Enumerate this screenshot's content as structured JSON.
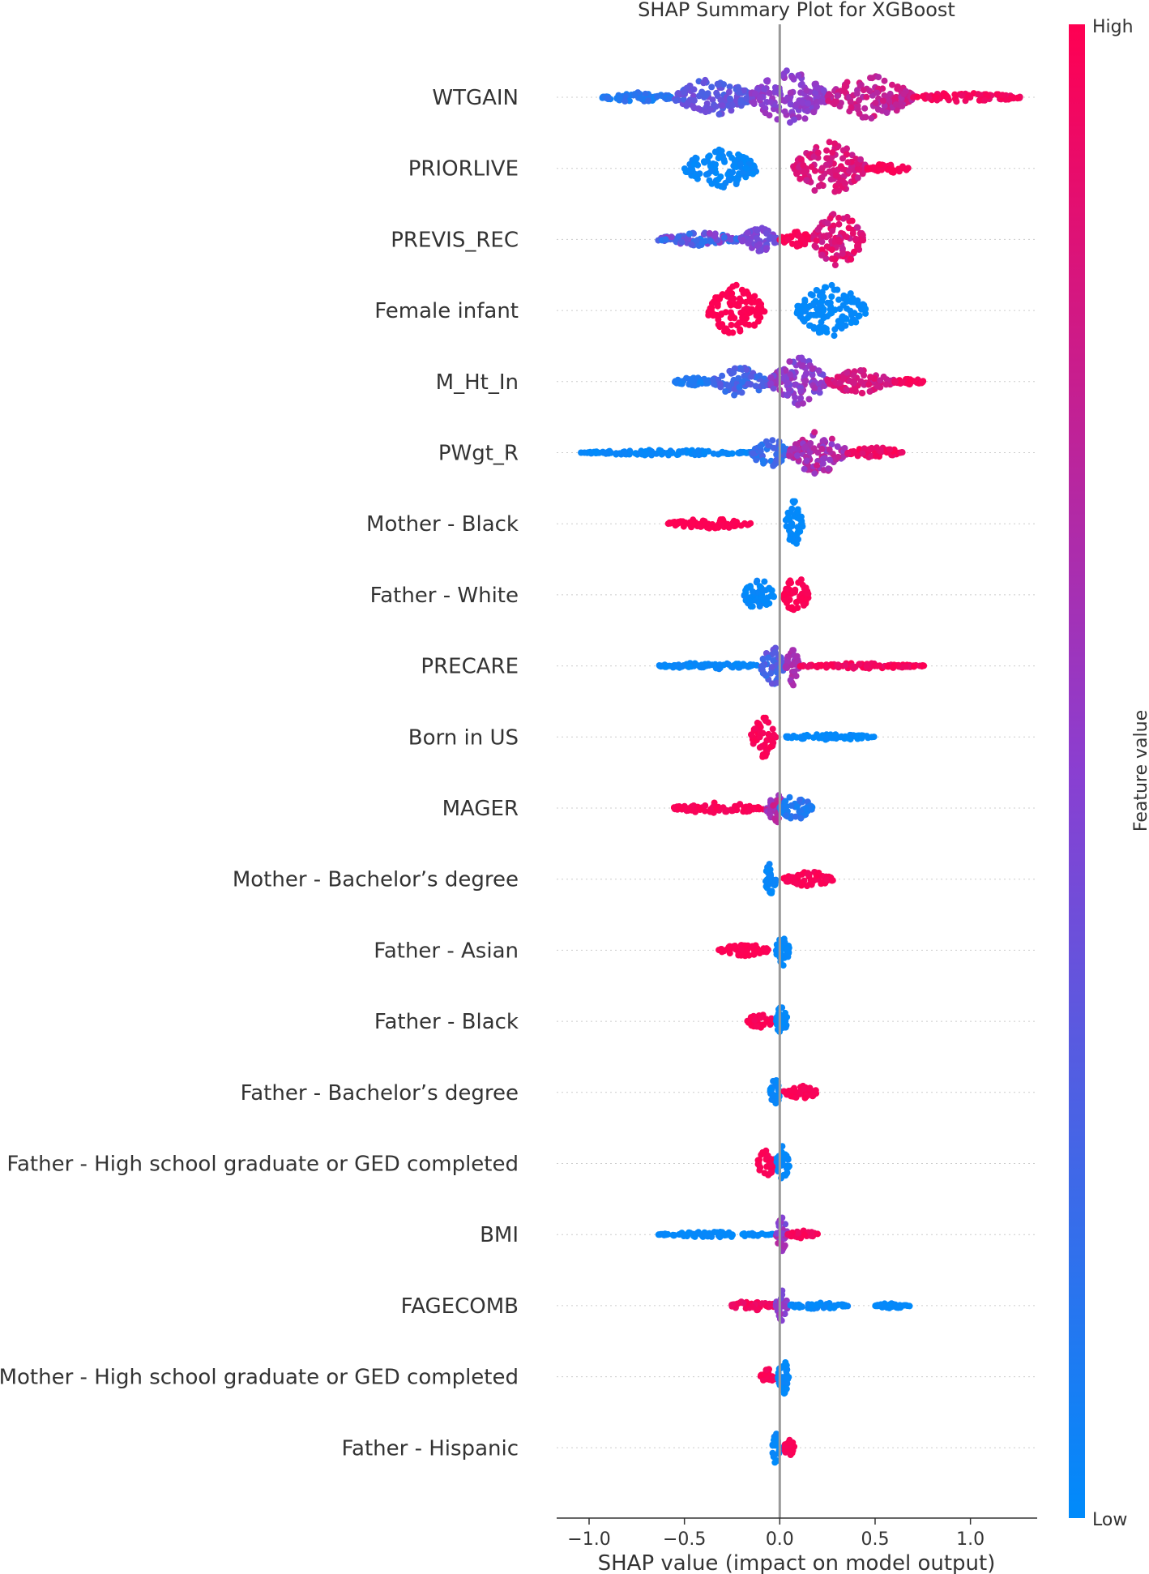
{
  "chart_data": {
    "type": "scatter",
    "subtype": "shap-beeswarm",
    "title": "SHAP Summary Plot for XGBoost",
    "xlabel": "SHAP value (impact on model output)",
    "xlim": [
      -1.17,
      1.35
    ],
    "xticks": [
      -1.0,
      -0.5,
      0.0,
      0.5,
      1.0
    ],
    "xtick_labels": [
      "−1.0",
      "−0.5",
      "0.0",
      "0.5",
      "1.0"
    ],
    "colorbar": {
      "label": "Feature value",
      "high": "High",
      "low": "Low",
      "low_color": "#008bfb",
      "high_color": "#ff0052"
    },
    "reference_line": 0.0,
    "features": [
      {
        "name": "WTGAIN",
        "clusters": [
          {
            "min": -0.93,
            "max": -0.55,
            "width": 0.18,
            "c0": 0.05,
            "c1": 0.2
          },
          {
            "min": -0.55,
            "max": -0.15,
            "width": 0.7,
            "c0": 0.25,
            "c1": 0.45
          },
          {
            "min": -0.15,
            "max": 0.25,
            "width": 1.0,
            "c0": 0.45,
            "c1": 0.6
          },
          {
            "min": 0.25,
            "max": 0.7,
            "width": 0.8,
            "c0": 0.65,
            "c1": 0.85
          },
          {
            "min": 0.7,
            "max": 1.27,
            "width": 0.18,
            "c0": 0.9,
            "c1": 1.0
          }
        ]
      },
      {
        "name": "PRIORLIVE",
        "clusters": [
          {
            "min": -0.5,
            "max": -0.12,
            "width": 0.75,
            "c0": 0.0,
            "c1": 0.05
          },
          {
            "min": 0.07,
            "max": 0.45,
            "width": 1.0,
            "c0": 0.75,
            "c1": 0.9
          },
          {
            "min": 0.45,
            "max": 0.68,
            "width": 0.18,
            "c0": 0.95,
            "c1": 1.0
          }
        ]
      },
      {
        "name": "PREVIS_REC",
        "clusters": [
          {
            "min": -0.64,
            "max": -0.2,
            "width": 0.25,
            "c0": 0.1,
            "c1": 0.55
          },
          {
            "min": -0.2,
            "max": 0.0,
            "width": 0.45,
            "c0": 0.35,
            "c1": 0.5
          },
          {
            "min": 0.0,
            "max": 0.17,
            "width": 0.3,
            "c0": 0.95,
            "c1": 1.0
          },
          {
            "min": 0.17,
            "max": 0.44,
            "width": 1.0,
            "c0": 0.75,
            "c1": 0.95
          }
        ]
      },
      {
        "name": "Female infant",
        "clusters": [
          {
            "min": -0.38,
            "max": -0.08,
            "width": 0.95,
            "c0": 0.98,
            "c1": 1.0
          },
          {
            "min": 0.09,
            "max": 0.45,
            "width": 0.95,
            "c0": 0.0,
            "c1": 0.03
          }
        ]
      },
      {
        "name": "M_Ht_In",
        "clusters": [
          {
            "min": -0.56,
            "max": -0.35,
            "width": 0.15,
            "c0": 0.05,
            "c1": 0.15
          },
          {
            "min": -0.35,
            "max": -0.05,
            "width": 0.55,
            "c0": 0.15,
            "c1": 0.35
          },
          {
            "min": -0.05,
            "max": 0.25,
            "width": 0.9,
            "c0": 0.4,
            "c1": 0.65
          },
          {
            "min": 0.25,
            "max": 0.6,
            "width": 0.45,
            "c0": 0.75,
            "c1": 0.9
          },
          {
            "min": 0.6,
            "max": 0.76,
            "width": 0.12,
            "c0": 0.9,
            "c1": 1.0
          }
        ]
      },
      {
        "name": "PWgt_R",
        "clusters": [
          {
            "min": -1.05,
            "max": -0.15,
            "width": 0.1,
            "c0": 0.0,
            "c1": 0.05
          },
          {
            "min": -0.15,
            "max": 0.05,
            "width": 0.55,
            "c0": 0.1,
            "c1": 0.3
          },
          {
            "min": 0.05,
            "max": 0.35,
            "width": 0.8,
            "c0": 0.5,
            "c1": 0.8
          },
          {
            "min": 0.35,
            "max": 0.65,
            "width": 0.2,
            "c0": 0.85,
            "c1": 1.0
          }
        ]
      },
      {
        "name": "Mother - Black",
        "clusters": [
          {
            "min": -0.59,
            "max": -0.14,
            "width": 0.18,
            "c0": 0.98,
            "c1": 1.0
          },
          {
            "min": 0.03,
            "max": 0.12,
            "width": 0.85,
            "c0": 0.0,
            "c1": 0.03
          }
        ]
      },
      {
        "name": "Father - White",
        "clusters": [
          {
            "min": -0.19,
            "max": -0.03,
            "width": 0.6,
            "c0": 0.0,
            "c1": 0.05
          },
          {
            "min": 0.02,
            "max": 0.15,
            "width": 0.75,
            "c0": 0.97,
            "c1": 1.0
          }
        ]
      },
      {
        "name": "PRECARE",
        "clusters": [
          {
            "min": -0.64,
            "max": -0.1,
            "width": 0.12,
            "c0": 0.0,
            "c1": 0.05
          },
          {
            "min": -0.1,
            "max": 0.03,
            "width": 0.7,
            "c0": 0.15,
            "c1": 0.4
          },
          {
            "min": 0.03,
            "max": 0.1,
            "width": 0.75,
            "c0": 0.55,
            "c1": 0.7
          },
          {
            "min": 0.1,
            "max": 0.76,
            "width": 0.1,
            "c0": 0.9,
            "c1": 1.0
          }
        ]
      },
      {
        "name": "Born in US",
        "clusters": [
          {
            "min": -0.15,
            "max": -0.02,
            "width": 0.75,
            "c0": 0.95,
            "c1": 1.0
          },
          {
            "min": 0.02,
            "max": 0.5,
            "width": 0.12,
            "c0": 0.0,
            "c1": 0.03
          }
        ]
      },
      {
        "name": "MAGER",
        "clusters": [
          {
            "min": -0.56,
            "max": -0.07,
            "width": 0.2,
            "c0": 0.95,
            "c1": 1.0
          },
          {
            "min": -0.07,
            "max": 0.03,
            "width": 0.55,
            "c0": 0.5,
            "c1": 0.8
          },
          {
            "min": 0.0,
            "max": 0.17,
            "width": 0.5,
            "c0": 0.05,
            "c1": 0.2
          }
        ]
      },
      {
        "name": "Mother - Bachelor’s degree",
        "clusters": [
          {
            "min": -0.08,
            "max": -0.02,
            "width": 0.6,
            "c0": 0.0,
            "c1": 0.05
          },
          {
            "min": 0.02,
            "max": 0.28,
            "width": 0.3,
            "c0": 0.95,
            "c1": 1.0
          }
        ]
      },
      {
        "name": "Father - Asian",
        "clusters": [
          {
            "min": -0.32,
            "max": -0.05,
            "width": 0.22,
            "c0": 0.98,
            "c1": 1.0
          },
          {
            "min": -0.02,
            "max": 0.05,
            "width": 0.6,
            "c0": 0.0,
            "c1": 0.03
          }
        ]
      },
      {
        "name": "Father - Black",
        "clusters": [
          {
            "min": -0.18,
            "max": -0.02,
            "width": 0.25,
            "c0": 0.95,
            "c1": 1.0
          },
          {
            "min": -0.02,
            "max": 0.04,
            "width": 0.65,
            "c0": 0.0,
            "c1": 0.03
          }
        ]
      },
      {
        "name": "Father - Bachelor’s degree",
        "clusters": [
          {
            "min": -0.05,
            "max": 0.0,
            "width": 0.65,
            "c0": 0.0,
            "c1": 0.05
          },
          {
            "min": 0.02,
            "max": 0.2,
            "width": 0.25,
            "c0": 0.95,
            "c1": 1.0
          }
        ]
      },
      {
        "name": "Father - High school graduate or GED completed",
        "clusters": [
          {
            "min": -0.12,
            "max": -0.02,
            "width": 0.5,
            "c0": 0.95,
            "c1": 1.0
          },
          {
            "min": -0.02,
            "max": 0.05,
            "width": 0.65,
            "c0": 0.0,
            "c1": 0.05
          }
        ]
      },
      {
        "name": "BMI",
        "clusters": [
          {
            "min": -0.64,
            "max": -0.02,
            "width": 0.1,
            "c0": 0.0,
            "c1": 0.03
          },
          {
            "min": -0.02,
            "max": 0.04,
            "width": 0.65,
            "c0": 0.4,
            "c1": 0.7
          },
          {
            "min": 0.04,
            "max": 0.2,
            "width": 0.15,
            "c0": 0.9,
            "c1": 1.0
          }
        ]
      },
      {
        "name": "FAGECOMB",
        "clusters": [
          {
            "min": -0.26,
            "max": -0.02,
            "width": 0.2,
            "c0": 0.9,
            "c1": 1.0
          },
          {
            "min": -0.02,
            "max": 0.04,
            "width": 0.6,
            "c0": 0.4,
            "c1": 0.6
          },
          {
            "min": 0.04,
            "max": 0.36,
            "width": 0.12,
            "c0": 0.0,
            "c1": 0.05
          },
          {
            "min": 0.5,
            "max": 0.69,
            "width": 0.1,
            "c0": 0.0,
            "c1": 0.03
          }
        ]
      },
      {
        "name": "Mother - High school graduate or GED completed",
        "clusters": [
          {
            "min": -0.1,
            "max": -0.02,
            "width": 0.3,
            "c0": 0.95,
            "c1": 1.0
          },
          {
            "min": -0.01,
            "max": 0.05,
            "width": 0.65,
            "c0": 0.0,
            "c1": 0.05
          }
        ]
      },
      {
        "name": "Father - Hispanic",
        "clusters": [
          {
            "min": -0.04,
            "max": 0.0,
            "width": 0.65,
            "c0": 0.0,
            "c1": 0.05
          },
          {
            "min": 0.02,
            "max": 0.08,
            "width": 0.3,
            "c0": 0.95,
            "c1": 1.0
          }
        ]
      }
    ]
  }
}
